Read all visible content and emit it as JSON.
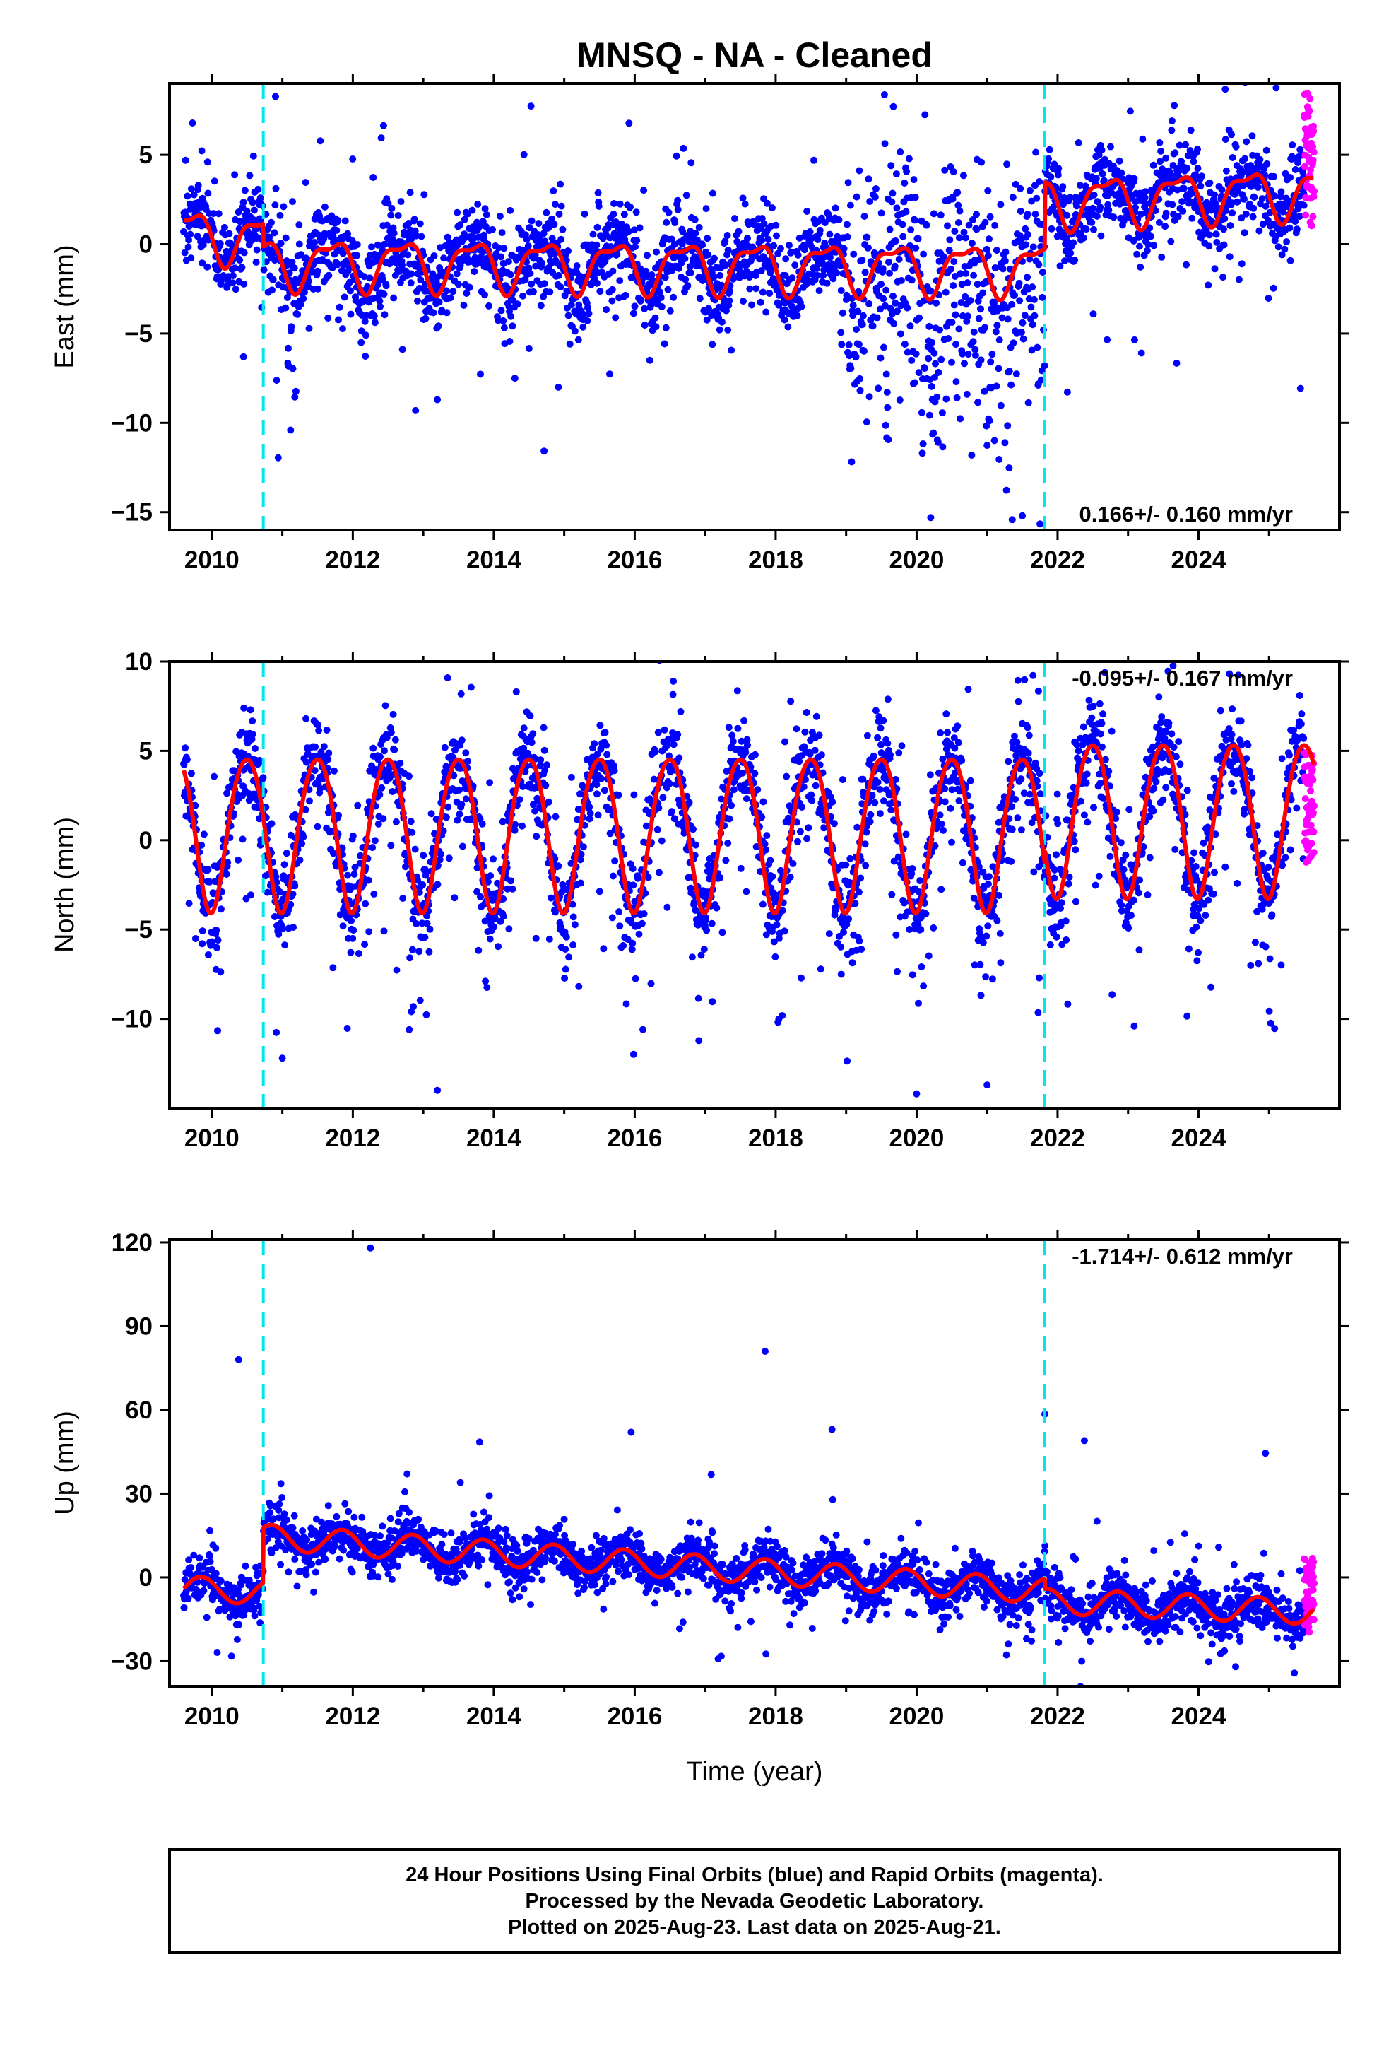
{
  "title": "MNSQ  - NA - Cleaned",
  "colors": {
    "final_orbits": "#0000ff",
    "rapid_orbits": "#ff00ff",
    "model": "#ff0000",
    "equipment_change": "#00e5ee"
  },
  "chart_data": [
    {
      "type": "scatter",
      "component": "east",
      "ylabel": "East (mm)",
      "xlabel": "",
      "xlim": [
        2009.4,
        2026.0
      ],
      "ylim": [
        -16,
        9
      ],
      "yticks": [
        -15,
        -10,
        -5,
        0,
        5
      ],
      "xticks": [
        2010,
        2012,
        2014,
        2016,
        2018,
        2020,
        2022,
        2024
      ],
      "rate_label": "0.166+/- 0.160 mm/yr",
      "rate_position": "bottom-right",
      "grid": false,
      "steps": [
        2010.73,
        2021.82
      ],
      "series": [
        {
          "values_from": "time series 2009.6 to 2025.5, mean ≈ -1 mm before 2021.8 and ≈ +2.5 mm after, annual amplitude ≈ 1.5 mm, scatter ≈ 1.2 mm, outliers to -15 mm"
        },
        {
          "values_from": "rapid orbits 2025.5 to 2025.64, values 1 to 8.5 mm"
        },
        {
          "values_from": "fitted model with offsets at 2010.73 and 2021.82"
        }
      ]
    },
    {
      "type": "scatter",
      "component": "north",
      "ylabel": "North (mm)",
      "xlabel": "",
      "xlim": [
        2009.4,
        2026.0
      ],
      "ylim": [
        -15,
        10
      ],
      "yticks": [
        -10,
        -5,
        0,
        5,
        10
      ],
      "xticks": [
        2010,
        2012,
        2014,
        2016,
        2018,
        2020,
        2022,
        2024
      ],
      "rate_label": "-0.095+/- 0.167 mm/yr",
      "rate_position": "top-right",
      "grid": false,
      "steps": [
        2010.73,
        2021.82
      ],
      "series": [
        {
          "values_from": "time series with annual amplitude ≈ 4.5 mm, peaks near mid-year, scatter ≈ 1.3 mm, outliers to -14 mm"
        },
        {
          "values_from": "rapid orbits 2025.5 to 2025.64, values -1 to 5 mm"
        },
        {
          "values_from": "fitted model"
        }
      ]
    },
    {
      "type": "scatter",
      "component": "up",
      "ylabel": "Up (mm)",
      "xlabel": "Time (year)",
      "xlim": [
        2009.4,
        2026.0
      ],
      "ylim": [
        -39,
        121
      ],
      "yticks": [
        -30,
        0,
        30,
        60,
        90,
        120
      ],
      "xticks": [
        2010,
        2012,
        2014,
        2016,
        2018,
        2020,
        2022,
        2024
      ],
      "rate_label": "-1.714+/- 0.612 mm/yr",
      "rate_position": "top-right",
      "grid": false,
      "steps": [
        2010.73,
        2021.82
      ],
      "series": [
        {
          "values_from": "time series: ≈ -5 mm in 2009-2010, jumps to ≈ +14 mm at 2010.73, declines ≈ 1.7 mm/yr, drops ≈ 8 mm at 2021.82 to ≈ -12 mm in 2025; annual amplitude ≈ 5 mm; outliers 78, 118, 81, 53, 48, 58, 49 mm"
        },
        {
          "values_from": "rapid orbits 2025.5 to 2025.64, values -20 to 7 mm"
        },
        {
          "values_from": "fitted model"
        }
      ]
    }
  ],
  "caption": {
    "line1": "24 Hour Positions Using Final Orbits (blue) and Rapid Orbits (magenta).",
    "line2": "Processed by the Nevada Geodetic Laboratory.",
    "line3": "Plotted on 2025-Aug-23. Last data on 2025-Aug-21."
  }
}
